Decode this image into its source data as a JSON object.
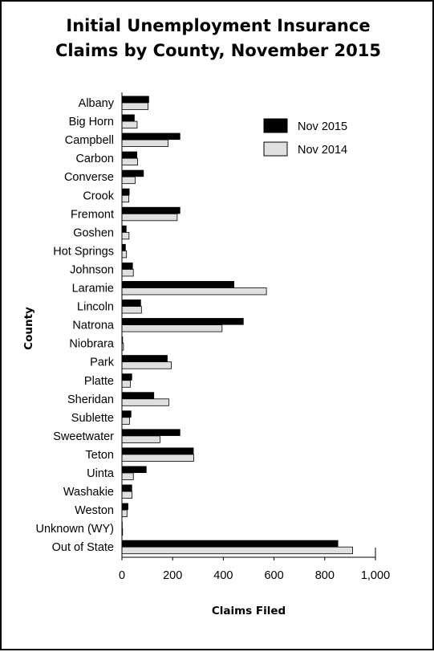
{
  "chart_data": {
    "type": "bar",
    "orientation": "horizontal",
    "title_lines": [
      "Initial Unemployment Insurance",
      "Claims by County, November 2015"
    ],
    "xlabel": "Claims Filed",
    "ylabel": "County",
    "xlim": [
      0,
      1000
    ],
    "xticks": [
      "0",
      "200",
      "400",
      "600",
      "800",
      "1,000"
    ],
    "xtick_values": [
      0,
      200,
      400,
      600,
      800,
      1000
    ],
    "grid": false,
    "legend_position": "top-right",
    "categories": [
      "Albany",
      "Big Horn",
      "Campbell",
      "Carbon",
      "Converse",
      "Crook",
      "Fremont",
      "Goshen",
      "Hot Springs",
      "Johnson",
      "Laramie",
      "Lincoln",
      "Natrona",
      "Niobrara",
      "Park",
      "Platte",
      "Sheridan",
      "Sublette",
      "Sweetwater",
      "Teton",
      "Uinta",
      "Washakie",
      "Weston",
      "Unknown (WY)",
      "Out of State"
    ],
    "series": [
      {
        "name": "Nov 2015",
        "color": "#000000",
        "values": [
          107,
          50,
          230,
          60,
          86,
          30,
          230,
          18,
          15,
          43,
          443,
          75,
          480,
          4,
          180,
          40,
          127,
          37,
          230,
          283,
          97,
          40,
          25,
          1,
          853
        ]
      },
      {
        "name": "Nov 2014",
        "color": "#e0e0e0",
        "values": [
          103,
          60,
          182,
          62,
          52,
          27,
          218,
          28,
          18,
          45,
          570,
          77,
          395,
          6,
          195,
          33,
          185,
          30,
          150,
          283,
          45,
          40,
          20,
          2,
          910
        ]
      }
    ]
  }
}
